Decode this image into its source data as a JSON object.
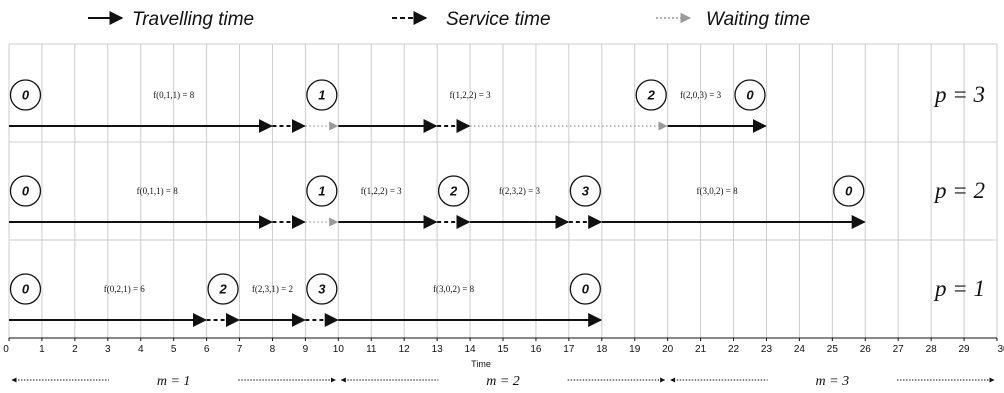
{
  "legend": [
    {
      "label": "Travelling time",
      "style": "travel"
    },
    {
      "label": "Service time",
      "style": "service"
    },
    {
      "label": "Waiting time",
      "style": "waiting"
    }
  ],
  "axis": {
    "title": "Time",
    "min": 0,
    "max": 30,
    "ticks": [
      "0",
      "1",
      "2",
      "3",
      "4",
      "5",
      "6",
      "7",
      "8",
      "9",
      "10",
      "11",
      "12",
      "13",
      "14",
      "15",
      "16",
      "17",
      "18",
      "19",
      "20",
      "21",
      "22",
      "23",
      "24",
      "25",
      "26",
      "27",
      "28",
      "29",
      "30"
    ]
  },
  "colors": {
    "travel": "#111111",
    "service": "#111111",
    "waiting": "#9a9a9a",
    "grid": "#cccccc"
  },
  "rows": [
    {
      "label": "p = 3",
      "segments": [
        {
          "type": "travel",
          "from": 0,
          "to": 8
        },
        {
          "type": "service",
          "from": 8,
          "to": 9
        },
        {
          "type": "waiting",
          "from": 9,
          "to": 10
        },
        {
          "type": "travel",
          "from": 10,
          "to": 13
        },
        {
          "type": "service",
          "from": 13,
          "to": 14
        },
        {
          "type": "waiting",
          "from": 14,
          "to": 20
        },
        {
          "type": "travel",
          "from": 20,
          "to": 23
        }
      ],
      "nodes": [
        {
          "label": "0",
          "at": 0.5
        },
        {
          "label": "1",
          "at": 9.5
        },
        {
          "label": "2",
          "at": 19.5
        },
        {
          "label": "0",
          "at": 22.5
        }
      ],
      "labels": [
        {
          "text": "f(0,1,1) = 8",
          "at": 5.0
        },
        {
          "text": "f(1,2,2) = 3",
          "at": 14.0
        },
        {
          "text": "f(2,0,3) = 3",
          "at": 21.0
        }
      ]
    },
    {
      "label": "p = 2",
      "segments": [
        {
          "type": "travel",
          "from": 0,
          "to": 8
        },
        {
          "type": "service",
          "from": 8,
          "to": 9
        },
        {
          "type": "waiting",
          "from": 9,
          "to": 10
        },
        {
          "type": "travel",
          "from": 10,
          "to": 13
        },
        {
          "type": "service",
          "from": 13,
          "to": 14
        },
        {
          "type": "travel",
          "from": 14,
          "to": 17
        },
        {
          "type": "service",
          "from": 17,
          "to": 18
        },
        {
          "type": "travel",
          "from": 18,
          "to": 26
        }
      ],
      "nodes": [
        {
          "label": "0",
          "at": 0.5
        },
        {
          "label": "1",
          "at": 9.5
        },
        {
          "label": "2",
          "at": 13.5
        },
        {
          "label": "3",
          "at": 17.5
        },
        {
          "label": "0",
          "at": 25.5
        }
      ],
      "labels": [
        {
          "text": "f(0,1,1) = 8",
          "at": 4.5
        },
        {
          "text": "f(1,2,2) = 3",
          "at": 11.3
        },
        {
          "text": "f(2,3,2) = 3",
          "at": 15.5
        },
        {
          "text": "f(3,0,2) = 8",
          "at": 21.5
        }
      ]
    },
    {
      "label": "p = 1",
      "segments": [
        {
          "type": "travel",
          "from": 0,
          "to": 6
        },
        {
          "type": "service",
          "from": 6,
          "to": 7
        },
        {
          "type": "travel",
          "from": 7,
          "to": 9
        },
        {
          "type": "service",
          "from": 9,
          "to": 10
        },
        {
          "type": "travel",
          "from": 10,
          "to": 18
        }
      ],
      "nodes": [
        {
          "label": "0",
          "at": 0.5
        },
        {
          "label": "2",
          "at": 6.5
        },
        {
          "label": "3",
          "at": 9.5
        },
        {
          "label": "0",
          "at": 17.5
        }
      ],
      "labels": [
        {
          "text": "f(0,2,1) = 6",
          "at": 3.5
        },
        {
          "text": "f(2,3,1) = 2",
          "at": 8.0
        },
        {
          "text": "f(3,0,2) = 8",
          "at": 13.5
        }
      ]
    }
  ],
  "periods": [
    {
      "label": "m = 1",
      "from": 0,
      "to": 10
    },
    {
      "label": "m = 2",
      "from": 10,
      "to": 20
    },
    {
      "label": "m = 3",
      "from": 20,
      "to": 30
    }
  ]
}
